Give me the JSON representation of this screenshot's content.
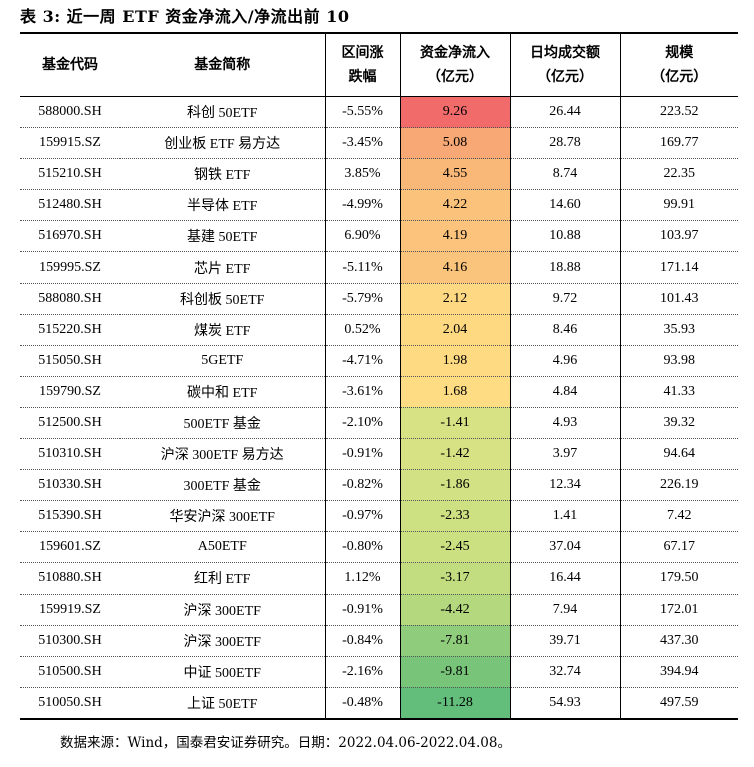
{
  "title": "表 3: 近一周 ETF 资金净流入/净流出前 10",
  "headers": {
    "code": "基金代码",
    "name": "基金简称",
    "change_l1": "区间涨",
    "change_l2": "跌幅",
    "flow_l1": "资金净流入",
    "flow_l2": "（亿元）",
    "turnover_l1": "日均成交额",
    "turnover_l2": "（亿元）",
    "scale_l1": "规模",
    "scale_l2": "（亿元）"
  },
  "rows": [
    {
      "code": "588000.SH",
      "name": "科创 50ETF",
      "change": "-5.55%",
      "flow": "9.26",
      "turnover": "26.44",
      "scale": "223.52",
      "flow_color": "#f26b6b"
    },
    {
      "code": "159915.SZ",
      "name": "创业板 ETF 易方达",
      "change": "-3.45%",
      "flow": "5.08",
      "turnover": "28.78",
      "scale": "169.77",
      "flow_color": "#f7a874"
    },
    {
      "code": "515210.SH",
      "name": "钢铁 ETF",
      "change": "3.85%",
      "flow": "4.55",
      "turnover": "8.74",
      "scale": "22.35",
      "flow_color": "#f9b878"
    },
    {
      "code": "512480.SH",
      "name": "半导体 ETF",
      "change": "-4.99%",
      "flow": "4.22",
      "turnover": "14.60",
      "scale": "99.91",
      "flow_color": "#fbc27b"
    },
    {
      "code": "516970.SH",
      "name": "基建 50ETF",
      "change": "6.90%",
      "flow": "4.19",
      "turnover": "10.88",
      "scale": "103.97",
      "flow_color": "#fbc37b"
    },
    {
      "code": "159995.SZ",
      "name": "芯片 ETF",
      "change": "-5.11%",
      "flow": "4.16",
      "turnover": "18.88",
      "scale": "171.14",
      "flow_color": "#fbc47c"
    },
    {
      "code": "588080.SH",
      "name": "科创板 50ETF",
      "change": "-5.79%",
      "flow": "2.12",
      "turnover": "9.72",
      "scale": "101.43",
      "flow_color": "#fed882"
    },
    {
      "code": "515220.SH",
      "name": "煤炭 ETF",
      "change": "0.52%",
      "flow": "2.04",
      "turnover": "8.46",
      "scale": "35.93",
      "flow_color": "#fed982"
    },
    {
      "code": "515050.SH",
      "name": "5GETF",
      "change": "-4.71%",
      "flow": "1.98",
      "turnover": "4.96",
      "scale": "93.98",
      "flow_color": "#feda83"
    },
    {
      "code": "159790.SZ",
      "name": "碳中和 ETF",
      "change": "-3.61%",
      "flow": "1.68",
      "turnover": "4.84",
      "scale": "41.33",
      "flow_color": "#fedc84"
    },
    {
      "code": "512500.SH",
      "name": "500ETF 基金",
      "change": "-2.10%",
      "flow": "-1.41",
      "turnover": "4.93",
      "scale": "39.32",
      "flow_color": "#d6e284"
    },
    {
      "code": "510310.SH",
      "name": "沪深 300ETF 易方达",
      "change": "-0.91%",
      "flow": "-1.42",
      "turnover": "3.97",
      "scale": "94.64",
      "flow_color": "#d6e284"
    },
    {
      "code": "510330.SH",
      "name": "300ETF 基金",
      "change": "-0.82%",
      "flow": "-1.86",
      "turnover": "12.34",
      "scale": "226.19",
      "flow_color": "#d2e183"
    },
    {
      "code": "515390.SH",
      "name": "华安沪深 300ETF",
      "change": "-0.97%",
      "flow": "-2.33",
      "turnover": "1.41",
      "scale": "7.42",
      "flow_color": "#cde082"
    },
    {
      "code": "159601.SZ",
      "name": "A50ETF",
      "change": "-0.80%",
      "flow": "-2.45",
      "turnover": "37.04",
      "scale": "67.17",
      "flow_color": "#cbe081"
    },
    {
      "code": "510880.SH",
      "name": "红利 ETF",
      "change": "1.12%",
      "flow": "-3.17",
      "turnover": "16.44",
      "scale": "179.50",
      "flow_color": "#c2dd80"
    },
    {
      "code": "159919.SZ",
      "name": "沪深 300ETF",
      "change": "-0.91%",
      "flow": "-4.42",
      "turnover": "7.94",
      "scale": "172.01",
      "flow_color": "#b3d87e"
    },
    {
      "code": "510300.SH",
      "name": "沪深 300ETF",
      "change": "-0.84%",
      "flow": "-7.81",
      "turnover": "39.71",
      "scale": "437.30",
      "flow_color": "#8fcc7b"
    },
    {
      "code": "510500.SH",
      "name": "中证 500ETF",
      "change": "-2.16%",
      "flow": "-9.81",
      "turnover": "32.74",
      "scale": "394.94",
      "flow_color": "#78c57a"
    },
    {
      "code": "510050.SH",
      "name": "上证 50ETF",
      "change": "-0.48%",
      "flow": "-11.28",
      "turnover": "54.93",
      "scale": "497.59",
      "flow_color": "#63be7b"
    }
  ],
  "source": "数据来源：Wind，国泰君安证券研究。日期：2022.04.06-2022.04.08。"
}
